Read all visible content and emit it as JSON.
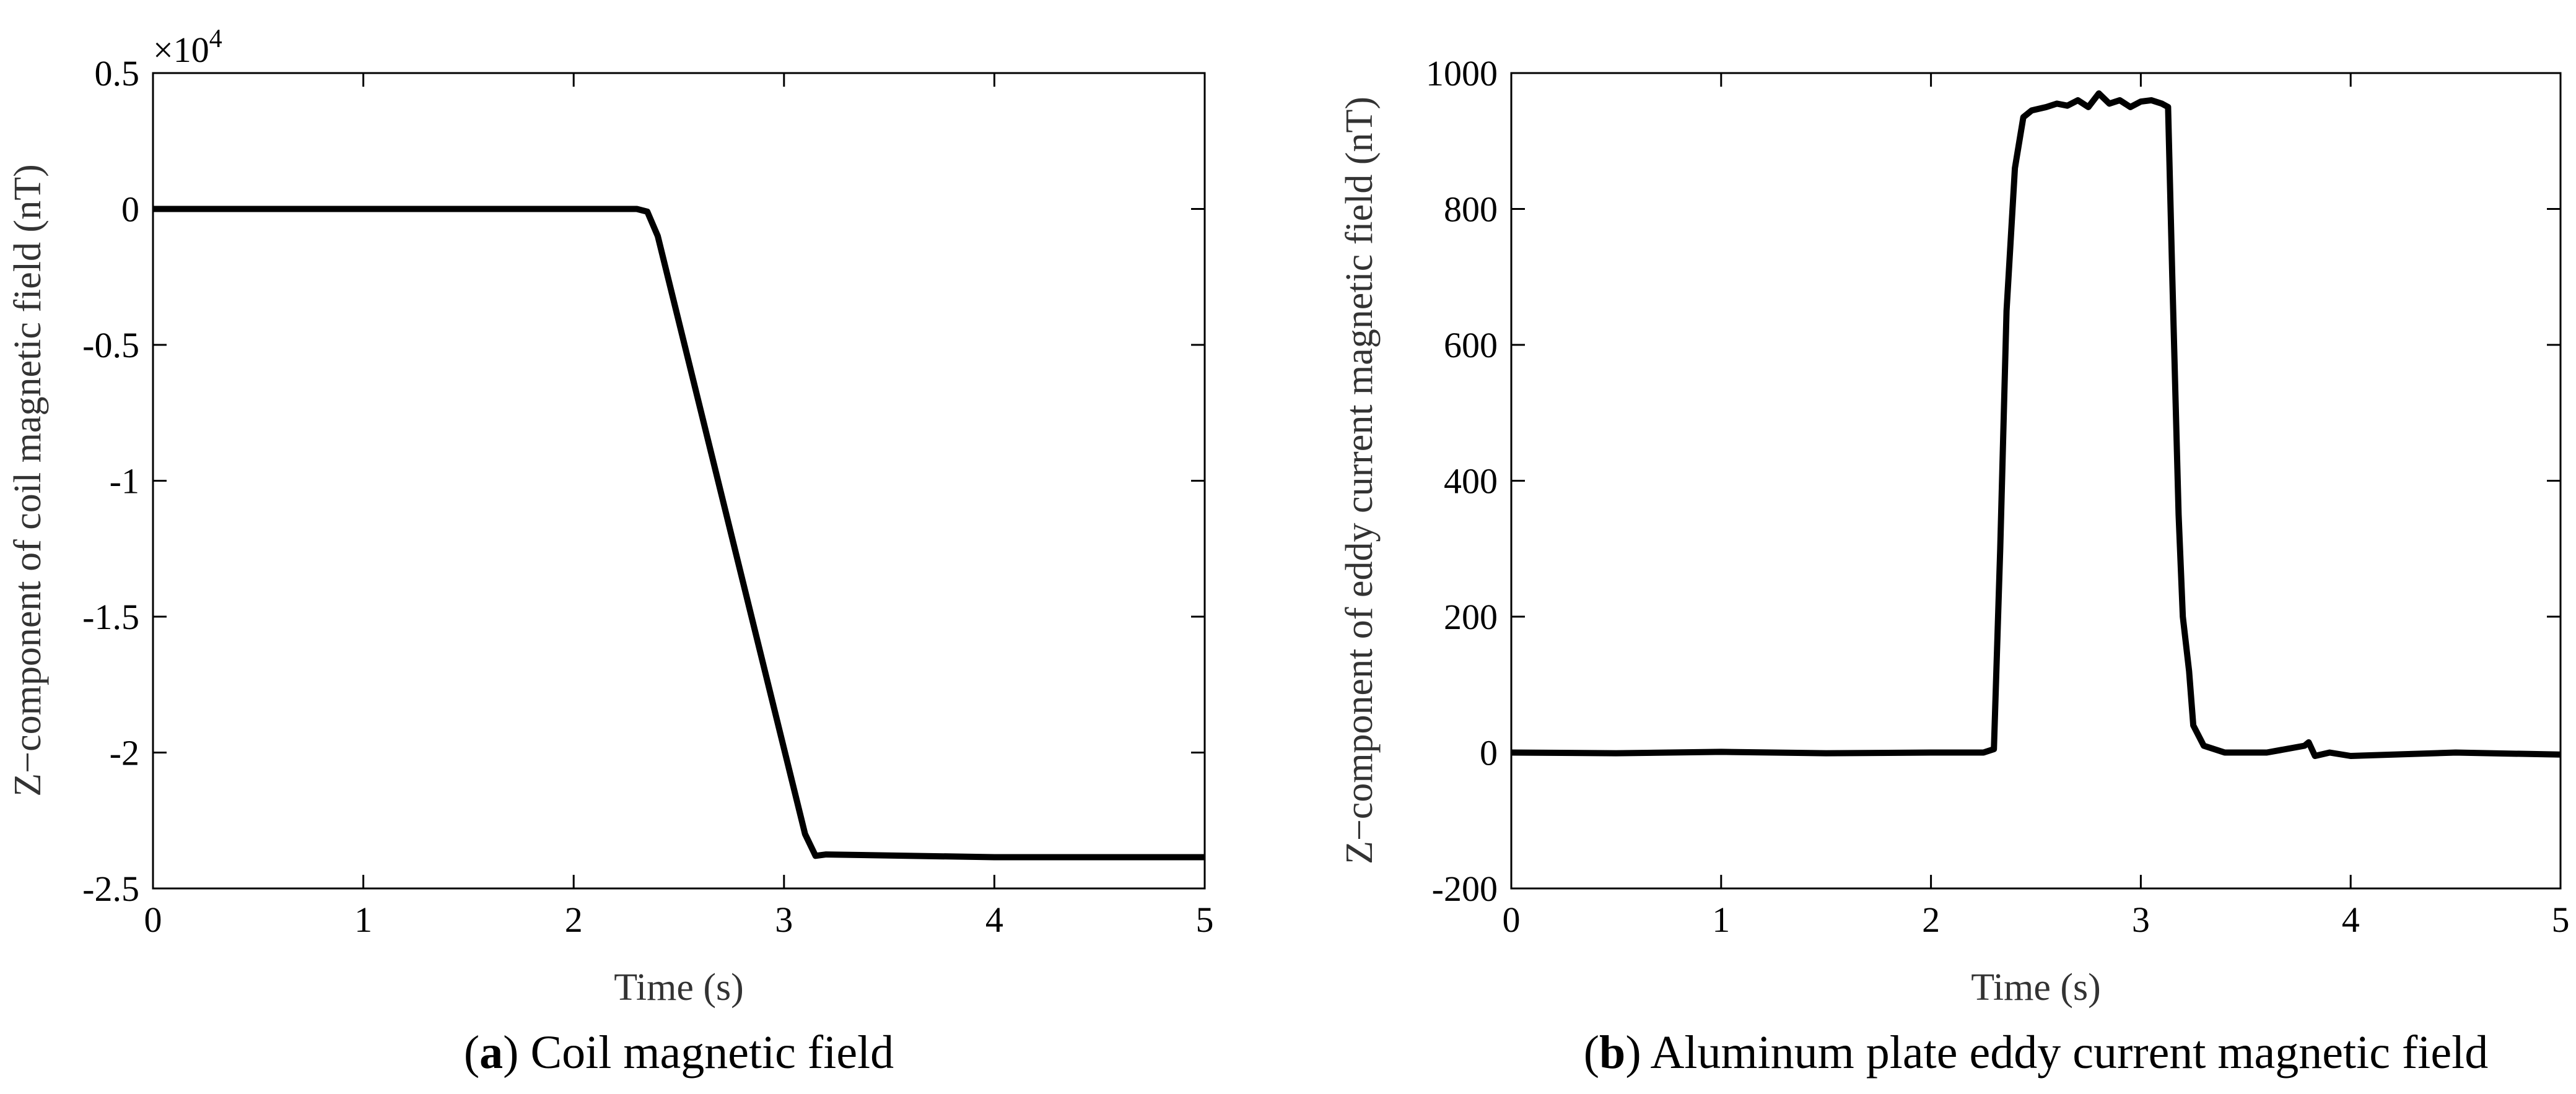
{
  "chart_data": [
    {
      "type": "line",
      "caption_letter": "a",
      "caption_text": "Coil magnetic field",
      "xlabel": "Time (s)",
      "ylabel": "Z−component of coil magnetic field (nT)",
      "y_exponent_base": "×10",
      "y_exponent_power": "4",
      "xlim": [
        0,
        5
      ],
      "ylim": [
        -2.5,
        0.5
      ],
      "x_ticks": [
        "0",
        "1",
        "2",
        "3",
        "4",
        "5"
      ],
      "y_ticks": [
        "0.5",
        "0",
        "-0.5",
        "-1",
        "-1.5",
        "-2",
        "-2.5"
      ],
      "series": [
        {
          "color": "#000000",
          "x": [
            0,
            1,
            2,
            2.3,
            2.35,
            2.4,
            3.1,
            3.15,
            3.2,
            4,
            5
          ],
          "y": [
            0,
            0,
            0,
            0,
            -0.01,
            -0.1,
            -2.3,
            -2.38,
            -2.375,
            -2.385,
            -2.385
          ]
        }
      ]
    },
    {
      "type": "line",
      "caption_letter": "b",
      "caption_text": "Aluminum plate eddy current magnetic field",
      "xlabel": "Time (s)",
      "ylabel": "Z−component of eddy current magnetic field (nT)",
      "xlim": [
        0,
        5
      ],
      "ylim": [
        -200,
        1000
      ],
      "x_ticks": [
        "0",
        "1",
        "2",
        "3",
        "4",
        "5"
      ],
      "y_ticks": [
        "1000",
        "800",
        "600",
        "400",
        "200",
        "0",
        "-200"
      ],
      "series": [
        {
          "color": "#000000",
          "x": [
            0,
            0.5,
            1,
            1.5,
            2,
            2.25,
            2.3,
            2.33,
            2.36,
            2.4,
            2.44,
            2.48,
            2.55,
            2.6,
            2.65,
            2.7,
            2.75,
            2.8,
            2.85,
            2.9,
            2.95,
            3.0,
            3.05,
            3.1,
            3.13,
            3.15,
            3.18,
            3.2,
            3.23,
            3.25,
            3.3,
            3.4,
            3.6,
            3.78,
            3.8,
            3.83,
            3.9,
            4.0,
            4.5,
            5.0
          ],
          "y": [
            0,
            -1,
            1,
            -1,
            0,
            0,
            5,
            300,
            650,
            860,
            935,
            945,
            950,
            955,
            952,
            960,
            950,
            970,
            955,
            960,
            950,
            958,
            960,
            955,
            950,
            700,
            350,
            200,
            120,
            40,
            10,
            0,
            0,
            10,
            15,
            -5,
            0,
            -5,
            0,
            -3
          ]
        }
      ]
    }
  ]
}
